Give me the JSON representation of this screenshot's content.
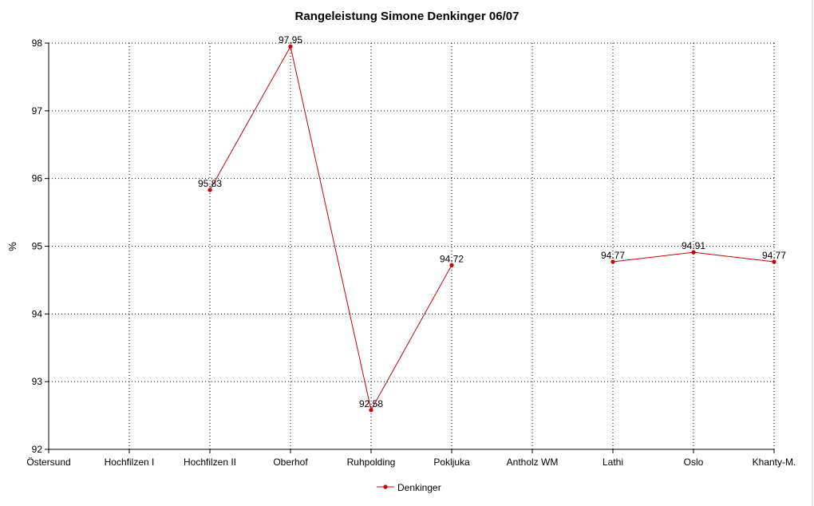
{
  "chart_data": {
    "type": "line",
    "title": "Rangeleistung Simone Denkinger 06/07",
    "xlabel": "",
    "ylabel": "%",
    "ylim": [
      92,
      98
    ],
    "yticks": [
      92,
      93,
      94,
      95,
      96,
      97,
      98
    ],
    "grid": true,
    "legend_position": "bottom",
    "categories": [
      "Östersund",
      "Hochfilzen I",
      "Hochfilzen II",
      "Oberhof",
      "Ruhpolding",
      "Pokljuka",
      "Antholz WM",
      "Lathi",
      "Oslo",
      "Khanty-M."
    ],
    "series": [
      {
        "name": "Denkinger",
        "color": "#cc0000",
        "values": [
          null,
          null,
          95.83,
          97.95,
          92.58,
          94.72,
          null,
          94.77,
          94.91,
          94.77
        ],
        "labels": [
          "",
          "",
          "95.83",
          "97.95",
          "92.58",
          "94.72",
          "",
          "94.77",
          "94.91",
          "94.77"
        ]
      }
    ]
  }
}
